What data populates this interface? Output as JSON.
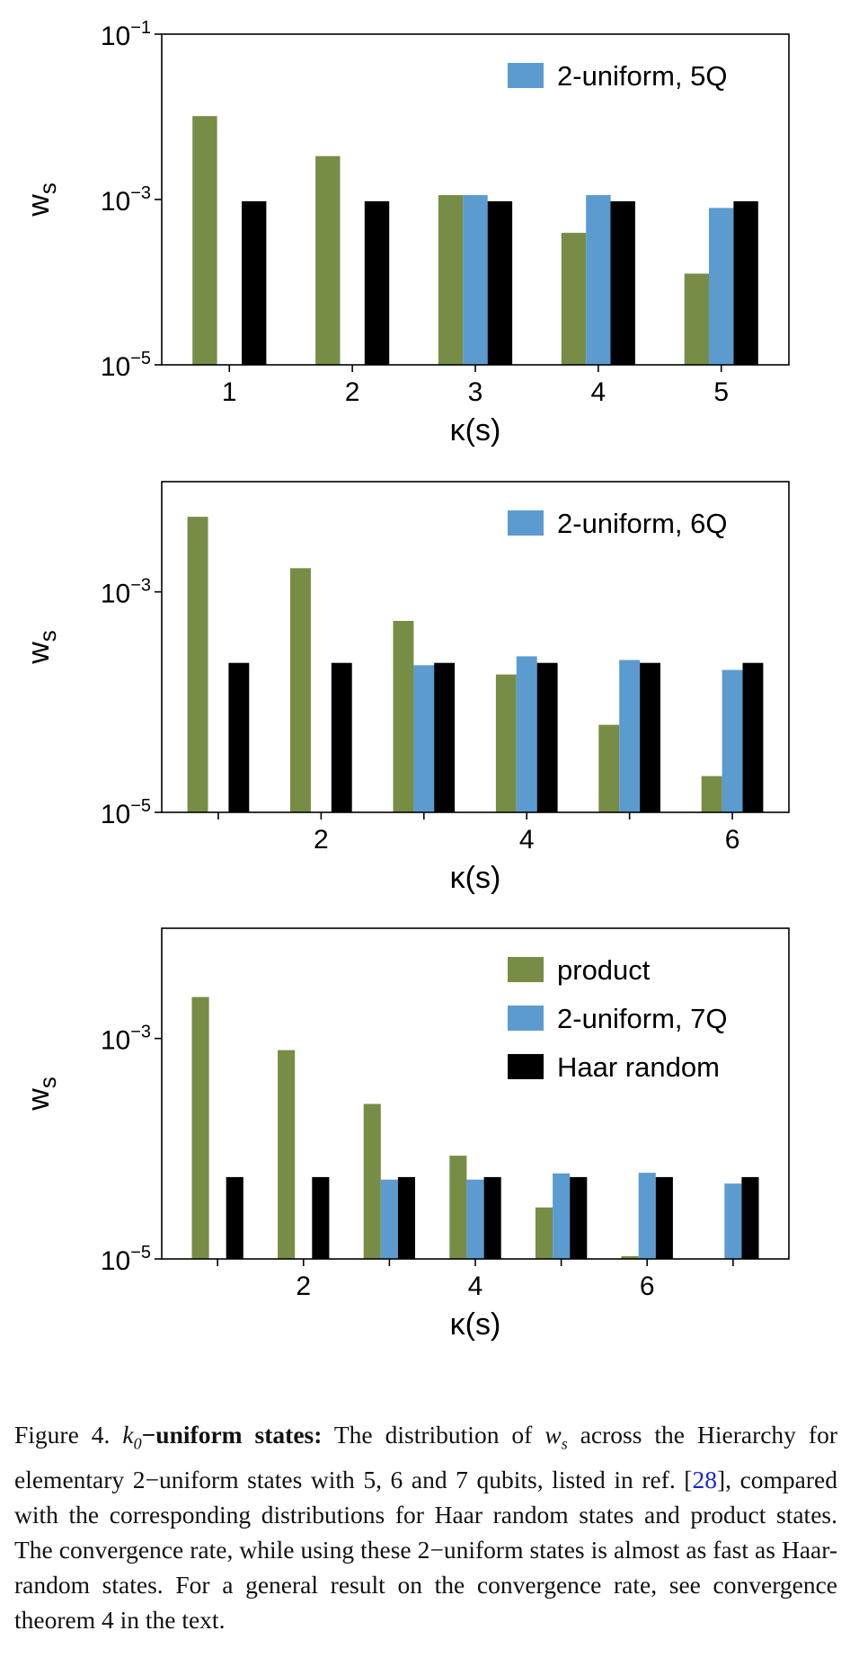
{
  "colors": {
    "product": "#778d45",
    "uniform": "#5b9bd0",
    "haar": "#000000"
  },
  "chart_data": [
    {
      "type": "bar",
      "scale": "log",
      "ylim_exp": [
        -5,
        -1
      ],
      "ytick_exps": [
        -1,
        -3,
        -5
      ],
      "ylabel_main": "w",
      "ylabel_sub": "s",
      "xlabel": "κ(s)",
      "categories": [
        1,
        2,
        3,
        4,
        5
      ],
      "xtick_labels": [
        "1",
        "2",
        "3",
        "4",
        "5"
      ],
      "xlim": [
        0.45,
        5.55
      ],
      "legend": [
        "uniform"
      ],
      "legend_position": "top-right",
      "legend_labels": {
        "uniform": "2-uniform, 5Q"
      },
      "series": [
        {
          "key": "product",
          "values": [
            0.0102,
            0.00335,
            0.00113,
            0.000395,
            0.000127
          ]
        },
        {
          "key": "uniform",
          "values": [
            null,
            null,
            0.00113,
            0.00113,
            0.00079
          ]
        },
        {
          "key": "haar",
          "values": [
            0.00095,
            0.00095,
            0.00095,
            0.00095,
            0.00095
          ]
        }
      ]
    },
    {
      "type": "bar",
      "scale": "log",
      "ylim_exp": [
        -5,
        -2.0
      ],
      "ytick_exps": [
        -3,
        -5
      ],
      "ylabel_main": "w",
      "ylabel_sub": "s",
      "xlabel": "κ(s)",
      "categories": [
        1,
        2,
        3,
        4,
        5,
        6
      ],
      "xtick_labels": [
        "",
        "2",
        "",
        "4",
        "",
        "6"
      ],
      "xlim": [
        0.45,
        6.55
      ],
      "legend": [
        "uniform"
      ],
      "legend_position": "top-right",
      "legend_labels": {
        "uniform": "2-uniform, 6Q"
      },
      "series": [
        {
          "key": "product",
          "values": [
            0.0048,
            0.00164,
            0.000545,
            0.000178,
            6.22e-05,
            2.13e-05
          ]
        },
        {
          "key": "uniform",
          "values": [
            null,
            null,
            0.000216,
            0.00026,
            0.000241,
            0.000196
          ]
        },
        {
          "key": "haar",
          "values": [
            0.000227,
            0.000227,
            0.000227,
            0.000227,
            0.000227,
            0.000227
          ]
        }
      ]
    },
    {
      "type": "bar",
      "scale": "log",
      "ylim_exp": [
        -5,
        -2.0
      ],
      "ytick_exps": [
        -3,
        -5
      ],
      "ylabel_main": "w",
      "ylabel_sub": "s",
      "xlabel": "κ(s)",
      "categories": [
        1,
        2,
        3,
        4,
        5,
        6,
        7
      ],
      "xtick_labels": [
        "",
        "2",
        "",
        "4",
        "",
        "6",
        ""
      ],
      "xlim": [
        0.35,
        7.65
      ],
      "legend": [
        "product",
        "uniform",
        "haar"
      ],
      "legend_position": "top-right",
      "legend_labels": {
        "product": "product",
        "uniform": "2-uniform, 7Q",
        "haar": "Haar random"
      },
      "series": [
        {
          "key": "product",
          "values": [
            0.00238,
            0.000784,
            0.000255,
            8.64e-05,
            2.93e-05,
            1.06e-05,
            null
          ]
        },
        {
          "key": "uniform",
          "values": [
            null,
            null,
            5.25e-05,
            5.25e-05,
            5.97e-05,
            6.05e-05,
            4.83e-05
          ]
        },
        {
          "key": "haar",
          "values": [
            5.53e-05,
            5.53e-05,
            5.53e-05,
            5.53e-05,
            5.53e-05,
            5.53e-05,
            5.53e-05
          ]
        }
      ]
    }
  ],
  "caption": {
    "label": "Figure 4.",
    "k_base": "k",
    "k_sub": "0",
    "title": "−uniform states:",
    "text1": " The distribution of ",
    "w_base": "w",
    "w_sub": "s",
    "text2": " across the Hierarchy for elementary 2−uniform states with 5, 6 and 7 qubits, listed in ref. [",
    "ref": "28",
    "text3": "], compared with the corresponding distributions for Haar random states and product states. The convergence rate, while using these 2−uniform states is almost as fast as Haar-random states. For a general result on the convergence rate, see convergence theorem 4 in the text."
  }
}
